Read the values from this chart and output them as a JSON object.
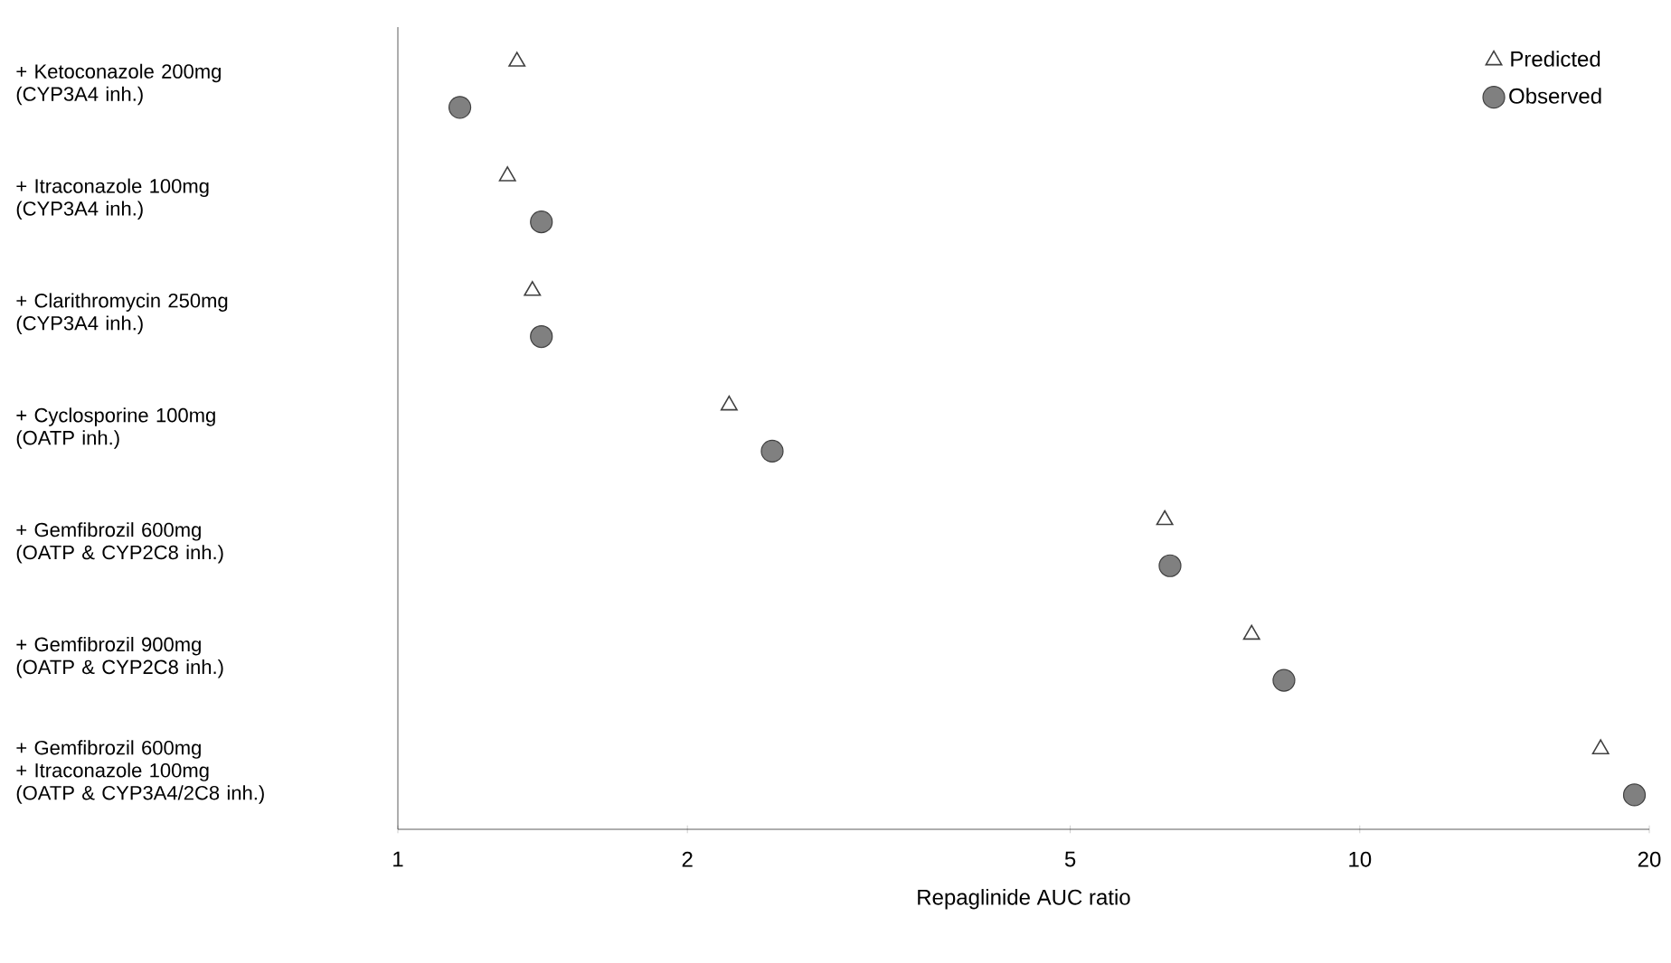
{
  "chart_data": {
    "type": "scatter",
    "orientation": "horizontal",
    "log": "x",
    "legend": "top right",
    "categories": [
      "+ Ketoconazole 200mg\n(CYP3A4 inh.)",
      "+ Itraconazole 100mg\n(CYP3A4 inh.)",
      "+ Clarithromycin 250mg\n(CYP3A4 inh.)",
      "+ Cyclosporine 100mg\n(OATP inh.)",
      "+ Gemfibrozil 600mg\n(OATP & CYP2C8 inh.)",
      "+ Gemfibrozil 900mg\n(OATP & CYP2C8 inh.)",
      "+ Gemfibrozil 600mg\n+ Itraconazole 100mg\n(OATP & CYP3A4/2C8 inh.)"
    ],
    "series": [
      {
        "name": "Predicted",
        "color": "#404040",
        "marker": "triangle",
        "values": [
          1.33,
          1.3,
          1.38,
          2.21,
          6.27,
          7.72,
          17.8
        ]
      },
      {
        "name": "Observed",
        "color": "#808080",
        "marker": "circle",
        "values": [
          1.16,
          1.41,
          1.41,
          2.45,
          6.35,
          8.34,
          19.3
        ]
      }
    ],
    "xlim": [
      1,
      20
    ],
    "xticks": [
      1,
      2,
      5,
      10,
      20
    ],
    "xlabel": "Repaglinide AUC ratio"
  }
}
